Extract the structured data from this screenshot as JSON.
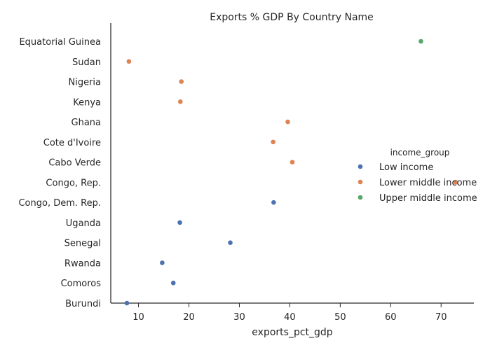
{
  "chart_data": {
    "type": "scatter",
    "title": "Exports % GDP By Country Name",
    "xlabel": "exports_pct_gdp",
    "ylabel": "",
    "xlim": [
      4.5,
      76.5
    ],
    "xticks": [
      10,
      20,
      30,
      40,
      50,
      60,
      70
    ],
    "grid": false,
    "legend_title": "income_group",
    "legend_position": "right",
    "categories": [
      "Equatorial Guinea",
      "Sudan",
      "Nigeria",
      "Kenya",
      "Ghana",
      "Cote d'Ivoire",
      "Cabo Verde",
      "Congo, Rep.",
      "Congo, Dem. Rep.",
      "Uganda",
      "Senegal",
      "Rwanda",
      "Comoros",
      "Burundi"
    ],
    "series": [
      {
        "name": "Low income",
        "color": "#4c72b0",
        "points": [
          {
            "country": "Congo, Dem. Rep.",
            "x": 36.8
          },
          {
            "country": "Uganda",
            "x": 18.2
          },
          {
            "country": "Senegal",
            "x": 28.2
          },
          {
            "country": "Rwanda",
            "x": 14.7
          },
          {
            "country": "Comoros",
            "x": 16.9
          },
          {
            "country": "Burundi",
            "x": 7.7
          }
        ]
      },
      {
        "name": "Lower middle income",
        "color": "#dd8452",
        "points": [
          {
            "country": "Sudan",
            "x": 8.1
          },
          {
            "country": "Nigeria",
            "x": 18.5
          },
          {
            "country": "Kenya",
            "x": 18.3
          },
          {
            "country": "Ghana",
            "x": 39.6
          },
          {
            "country": "Cote d'Ivoire",
            "x": 36.7
          },
          {
            "country": "Cabo Verde",
            "x": 40.5
          },
          {
            "country": "Congo, Rep.",
            "x": 72.9
          }
        ]
      },
      {
        "name": "Upper middle income",
        "color": "#55a868",
        "points": [
          {
            "country": "Equatorial Guinea",
            "x": 66.0
          }
        ]
      }
    ]
  }
}
